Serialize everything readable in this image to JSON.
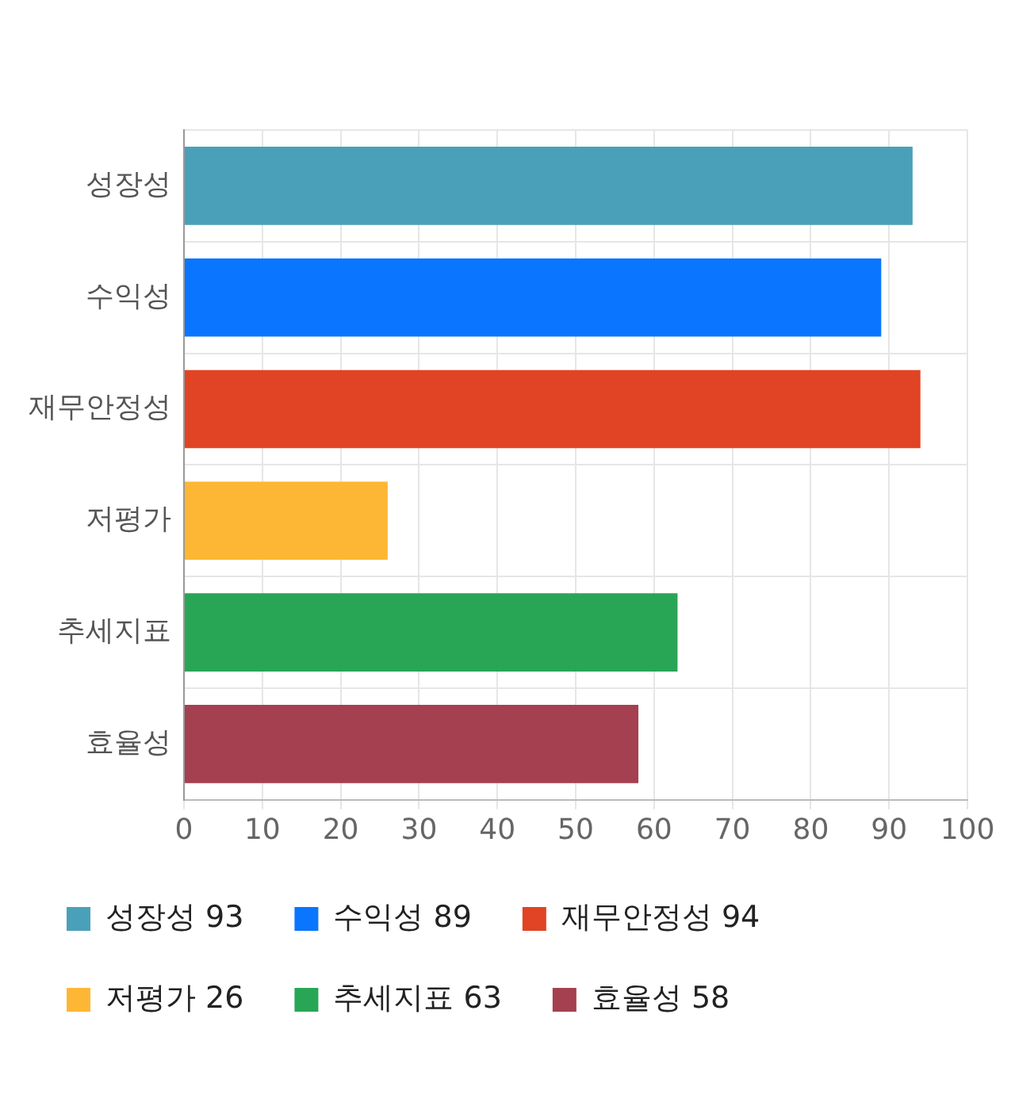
{
  "chart_data": {
    "type": "bar",
    "orientation": "horizontal",
    "stacked": true,
    "categories": [
      "성장성",
      "수익성",
      "재무안정성",
      "저평가",
      "추세지표",
      "효율성"
    ],
    "series": [
      {
        "name": "성장성 93",
        "color": "#4aa0b9",
        "values": [
          93,
          null,
          null,
          null,
          null,
          null
        ]
      },
      {
        "name": "수익성 89",
        "color": "#0a75ff",
        "values": [
          null,
          89,
          null,
          null,
          null,
          null
        ]
      },
      {
        "name": "재무안정성 94",
        "color": "#e04424",
        "values": [
          null,
          null,
          94,
          null,
          null,
          null
        ]
      },
      {
        "name": "저평가 26",
        "color": "#fdb734",
        "values": [
          null,
          null,
          null,
          26,
          null,
          null
        ]
      },
      {
        "name": "추세지표 63",
        "color": "#28a655",
        "values": [
          null,
          null,
          null,
          null,
          63,
          null
        ]
      },
      {
        "name": "효율성 58",
        "color": "#a4404f",
        "values": [
          null,
          null,
          null,
          null,
          null,
          58
        ]
      }
    ],
    "xlim": [
      0,
      100
    ],
    "xticks": [
      0,
      10,
      20,
      30,
      40,
      50,
      60,
      70,
      80,
      90,
      100
    ],
    "grid": true,
    "legend": "bottom"
  }
}
